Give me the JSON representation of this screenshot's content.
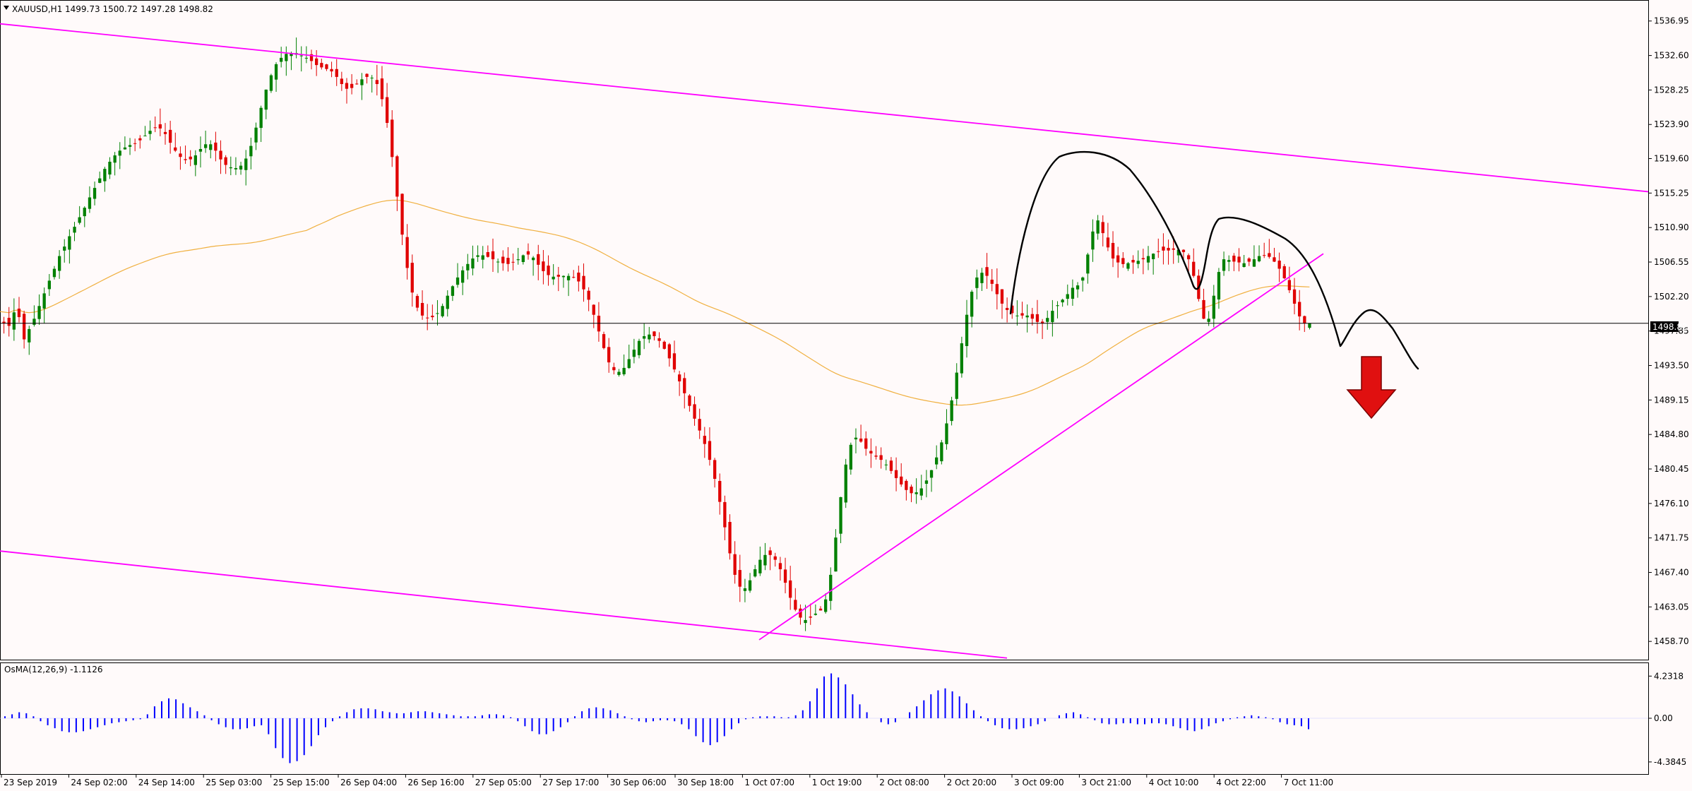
{
  "header": {
    "dropdown_icon": "triangle-down-icon",
    "symbol_label": "XAUUSD,H1",
    "ohlc_text": "1499.73 1500.72 1497.28 1498.82"
  },
  "indicator": {
    "label": "OsMA(12,26,9) -1.1126"
  },
  "price_axis": {
    "ticks": [
      "1536.95",
      "1532.60",
      "1528.25",
      "1523.90",
      "1519.60",
      "1515.25",
      "1510.90",
      "1506.55",
      "1502.20",
      "1497.85",
      "1493.50",
      "1489.15",
      "1484.80",
      "1480.45",
      "1476.10",
      "1471.75",
      "1467.40",
      "1463.05",
      "1458.70"
    ],
    "current_price": "1498.82"
  },
  "osc_axis": {
    "ticks": [
      "4.2318",
      "0.00",
      "-4.3845"
    ]
  },
  "time_axis": {
    "labels": [
      "23 Sep 2019",
      "24 Sep 02:00",
      "24 Sep 14:00",
      "25 Sep 03:00",
      "25 Sep 15:00",
      "26 Sep 04:00",
      "26 Sep 16:00",
      "27 Sep 05:00",
      "27 Sep 17:00",
      "30 Sep 06:00",
      "30 Sep 18:00",
      "1 Oct 07:00",
      "1 Oct 19:00",
      "2 Oct 08:00",
      "2 Oct 20:00",
      "3 Oct 09:00",
      "3 Oct 21:00",
      "4 Oct 10:00",
      "4 Oct 22:00",
      "7 Oct 11:00"
    ]
  },
  "colors": {
    "background": "#fffafa",
    "bull": "#008000",
    "bear": "#e00000",
    "channel": "#ff00ff",
    "ma": "#f0b040",
    "osma": "#0000ff",
    "arrow": "#e01010",
    "arrow_outline": "#7a0000",
    "grid_line": "#000000"
  },
  "chart_data": {
    "type": "candlestick",
    "timeframe": "H1",
    "ylim": [
      1456.4,
      1539.6
    ],
    "osc_ylim": [
      -5.6,
      5.6
    ],
    "close_series": [
      1498.8,
      1498.5,
      1500.2,
      1499.6,
      1496.8,
      1498.1,
      1499.4,
      1501.0,
      1502.6,
      1504.2,
      1505.7,
      1507.3,
      1508.5,
      1509.8,
      1511.0,
      1512.2,
      1513.4,
      1514.7,
      1515.9,
      1517.1,
      1518.3,
      1519.2,
      1520.0,
      1520.6,
      1521.0,
      1521.3,
      1521.5,
      1521.9,
      1522.5,
      1523.1,
      1523.5,
      1523.4,
      1522.7,
      1521.6,
      1520.6,
      1519.8,
      1519.4,
      1519.5,
      1520.0,
      1520.8,
      1521.4,
      1521.4,
      1520.6,
      1519.5,
      1518.8,
      1518.5,
      1518.4,
      1518.7,
      1519.6,
      1521.2,
      1523.5,
      1526.0,
      1528.3,
      1530.1,
      1531.5,
      1532.3,
      1532.8,
      1532.9,
      1532.9,
      1532.6,
      1532.3,
      1531.9,
      1531.4,
      1531.1,
      1530.9,
      1530.6,
      1529.9,
      1529.0,
      1528.4,
      1528.5,
      1529.0,
      1529.6,
      1529.9,
      1529.8,
      1529.0,
      1527.1,
      1524.1,
      1519.8,
      1514.8,
      1510.0,
      1505.8,
      1502.7,
      1500.8,
      1499.8,
      1499.5,
      1499.6,
      1500.1,
      1501.0,
      1502.3,
      1503.5,
      1504.6,
      1505.5,
      1506.3,
      1507.0,
      1507.4,
      1507.4,
      1507.2,
      1506.9,
      1506.6,
      1506.4,
      1506.3,
      1506.5,
      1506.9,
      1507.4,
      1507.5,
      1507.1,
      1506.2,
      1505.4,
      1504.9,
      1504.7,
      1504.7,
      1504.8,
      1504.8,
      1504.6,
      1504.1,
      1503.1,
      1501.8,
      1499.9,
      1497.8,
      1495.7,
      1493.9,
      1492.9,
      1492.7,
      1493.2,
      1494.3,
      1495.5,
      1496.6,
      1497.2,
      1497.4,
      1497.2,
      1496.6,
      1495.6,
      1494.4,
      1493.0,
      1491.5,
      1490.0,
      1488.4,
      1486.8,
      1485.3,
      1483.6,
      1481.6,
      1479.2,
      1476.3,
      1473.1,
      1469.8,
      1467.1,
      1465.6,
      1465.4,
      1466.4,
      1467.8,
      1469.0,
      1469.6,
      1469.6,
      1469.0,
      1467.8,
      1466.1,
      1464.2,
      1462.7,
      1461.7,
      1461.4,
      1461.7,
      1462.2,
      1462.6,
      1464.0,
      1467.1,
      1471.8,
      1476.9,
      1481.0,
      1483.5,
      1484.4,
      1483.9,
      1483.0,
      1482.4,
      1482.0,
      1481.6,
      1481.0,
      1480.2,
      1479.3,
      1478.5,
      1477.8,
      1477.4,
      1477.5,
      1478.0,
      1479.0,
      1480.3,
      1481.9,
      1483.8,
      1486.2,
      1489.1,
      1492.6,
      1496.3,
      1499.9,
      1502.8,
      1504.6,
      1505.2,
      1504.8,
      1503.8,
      1502.5,
      1501.3,
      1500.5,
      1500.1,
      1499.8,
      1499.8,
      1499.8,
      1499.4,
      1499.0,
      1498.8,
      1499.5,
      1500.4,
      1501.1,
      1501.8,
      1502.5,
      1503.3,
      1503.6,
      1504.6,
      1507.5,
      1510.4,
      1511.8,
      1510.2,
      1508.4,
      1507.0,
      1506.5,
      1506.3,
      1506.4,
      1506.5,
      1506.7,
      1506.9,
      1507.3,
      1507.6,
      1507.9,
      1508.0,
      1508.0,
      1508.1,
      1508.1,
      1507.8,
      1506.9,
      1504.8,
      1501.9,
      1499.4,
      1499.4,
      1502.3,
      1505.3,
      1506.9,
      1506.8,
      1506.6,
      1506.5,
      1506.4,
      1506.6,
      1506.9,
      1507.3,
      1507.4,
      1507.2,
      1506.6,
      1505.7,
      1504.5,
      1503.0,
      1501.3,
      1499.7,
      1498.8,
      1498.8
    ],
    "channel": {
      "upper": {
        "x1": 0,
        "y1": 1536.6,
        "x2": 2336,
        "y2": 1515.4
      },
      "lower": {
        "x1": 0,
        "y1": 1470.1,
        "x2": 1426,
        "y2": 1456.6
      }
    },
    "trendline": {
      "x1": 1075,
      "y1": 1458.9,
      "x2": 1874,
      "y2": 1507.6
    },
    "osma": [
      0.2,
      0.4,
      0.6,
      0.5,
      0.2,
      -0.3,
      -0.7,
      -1.0,
      -1.3,
      -1.4,
      -1.4,
      -1.3,
      -1.1,
      -0.9,
      -0.7,
      -0.5,
      -0.4,
      -0.3,
      -0.2,
      -0.1,
      0.4,
      1.2,
      1.7,
      2.0,
      1.9,
      1.5,
      1.1,
      0.7,
      0.3,
      -0.2,
      -0.6,
      -0.9,
      -1.1,
      -1.1,
      -1.0,
      -0.8,
      -0.7,
      -1.6,
      -3.0,
      -4.0,
      -4.5,
      -4.3,
      -3.7,
      -2.8,
      -1.7,
      -0.9,
      -0.3,
      0.2,
      0.6,
      0.9,
      1.0,
      1.0,
      0.9,
      0.7,
      0.6,
      0.5,
      0.5,
      0.6,
      0.7,
      0.7,
      0.6,
      0.5,
      0.4,
      0.3,
      0.2,
      0.2,
      0.2,
      0.3,
      0.4,
      0.4,
      0.3,
      0.1,
      -0.3,
      -0.8,
      -1.3,
      -1.6,
      -1.6,
      -1.3,
      -0.9,
      -0.4,
      0.2,
      0.7,
      1.0,
      1.1,
      1.0,
      0.8,
      0.5,
      0.2,
      -0.1,
      -0.3,
      -0.4,
      -0.3,
      -0.2,
      -0.2,
      -0.3,
      -0.6,
      -1.1,
      -1.8,
      -2.4,
      -2.7,
      -2.4,
      -1.8,
      -1.1,
      -0.5,
      -0.1,
      0.1,
      0.2,
      0.2,
      0.2,
      0.1,
      0.1,
      0.3,
      0.8,
      1.7,
      3.0,
      4.2,
      4.5,
      4.1,
      3.4,
      2.4,
      1.4,
      0.6,
      0.0,
      -0.4,
      -0.6,
      -0.4,
      0.0,
      0.6,
      1.2,
      1.8,
      2.4,
      2.8,
      3.0,
      2.7,
      2.2,
      1.5,
      0.8,
      0.2,
      -0.3,
      -0.7,
      -1.0,
      -1.1,
      -1.1,
      -1.0,
      -0.8,
      -0.6,
      -0.3,
      0.0,
      0.3,
      0.5,
      0.6,
      0.4,
      0.1,
      -0.2,
      -0.5,
      -0.6,
      -0.6,
      -0.5,
      -0.5,
      -0.6,
      -0.6,
      -0.5,
      -0.5,
      -0.6,
      -0.8,
      -1.0,
      -1.2,
      -1.3,
      -1.1,
      -0.8,
      -0.5,
      -0.3,
      -0.1,
      0.1,
      0.2,
      0.3,
      0.2,
      0.1,
      -0.1,
      -0.4,
      -0.6,
      -0.7,
      -0.8,
      -1.1
    ]
  }
}
